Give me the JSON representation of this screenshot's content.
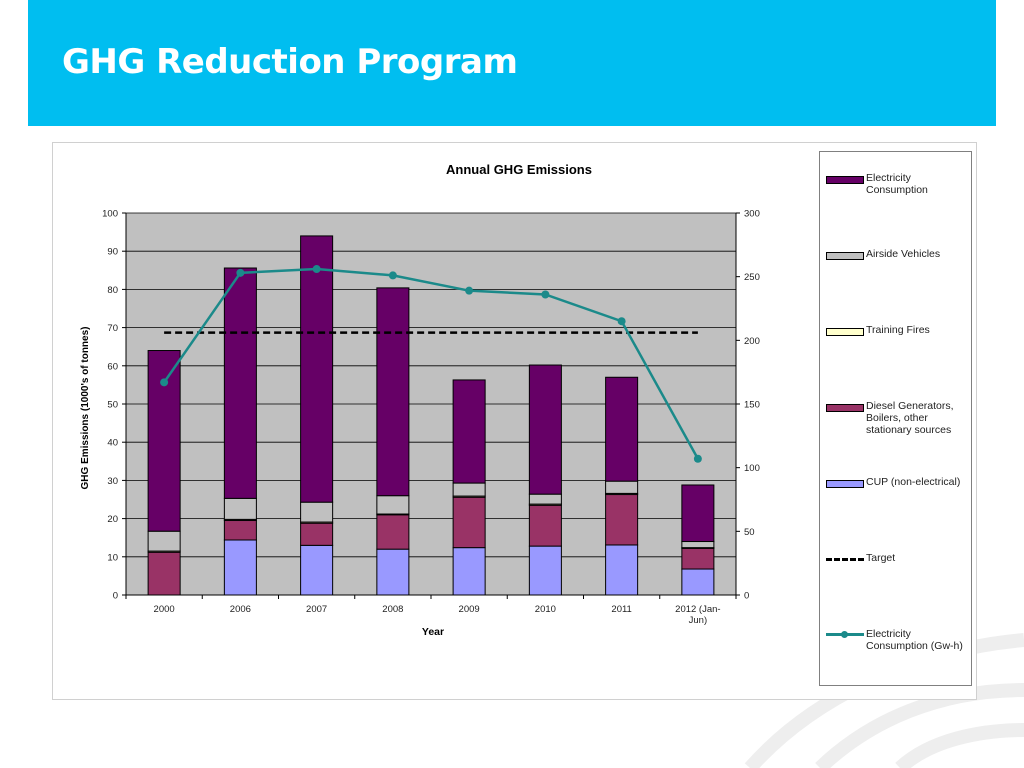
{
  "slide": {
    "title": "GHG Reduction Program",
    "banner_color": "#00bef0"
  },
  "chart_data": {
    "type": "bar",
    "stacked": true,
    "title": "Annual GHG Emissions",
    "xlabel": "Year",
    "ylabel": "GHG Emissions  (1000's of tonnes)",
    "ylim": [
      0,
      100
    ],
    "y_ticks": [
      0,
      10,
      20,
      30,
      40,
      50,
      60,
      70,
      80,
      90,
      100
    ],
    "y2lim": [
      0,
      300
    ],
    "y2_ticks": [
      0,
      50,
      100,
      150,
      200,
      250,
      300
    ],
    "grid": true,
    "legend_position": "right",
    "categories": [
      "2000",
      "2006",
      "2007",
      "2008",
      "2009",
      "2010",
      "2011",
      "2012 (Jan-Jun)"
    ],
    "category_label_lines": [
      [
        "2000"
      ],
      [
        "2006"
      ],
      [
        "2007"
      ],
      [
        "2008"
      ],
      [
        "2009"
      ],
      [
        "2010"
      ],
      [
        "2011"
      ],
      [
        "2012 (Jan-",
        "Jun)"
      ]
    ],
    "series": [
      {
        "name": "CUP (non-electrical)",
        "type": "bar",
        "axis": "left",
        "color": "#9999ff",
        "values": [
          0,
          14.4,
          13.0,
          12.0,
          12.4,
          12.8,
          13.1,
          6.8
        ]
      },
      {
        "name": "Diesel Generators, Boilers, other stationary sources",
        "type": "bar",
        "axis": "left",
        "color": "#993366",
        "values": [
          11.2,
          5.1,
          5.8,
          9.0,
          13.2,
          10.7,
          13.2,
          5.5
        ]
      },
      {
        "name": "Training Fires",
        "type": "bar",
        "axis": "left",
        "color": "#ffffcc",
        "values": [
          0.3,
          0.3,
          0.3,
          0.2,
          0.3,
          0.3,
          0.3,
          0.1
        ]
      },
      {
        "name": "Airside Vehicles",
        "type": "bar",
        "axis": "left",
        "color": "#c0c0c0",
        "values": [
          5.2,
          5.5,
          5.2,
          4.8,
          3.4,
          2.6,
          3.2,
          1.6
        ]
      },
      {
        "name": "Electricity Consumption",
        "type": "bar",
        "axis": "left",
        "color": "#660066",
        "values": [
          47.3,
          60.3,
          69.7,
          54.4,
          27.0,
          33.8,
          27.2,
          14.8
        ]
      },
      {
        "name": "Target",
        "type": "line",
        "style": "dashed",
        "axis": "left",
        "color": "#000000",
        "values": [
          68.7,
          68.7,
          68.7,
          68.7,
          68.7,
          68.7,
          68.7,
          68.7
        ]
      },
      {
        "name": "Electricity Consumption (Gw-h)",
        "type": "line",
        "axis": "right",
        "color": "#1b8a8a",
        "values": [
          167,
          253,
          256,
          251,
          239,
          236,
          215,
          107
        ]
      }
    ],
    "legend": [
      {
        "label": "Electricity Consumption",
        "kind": "swatch",
        "color": "#660066"
      },
      {
        "label": "Airside Vehicles",
        "kind": "swatch",
        "color": "#c0c0c0"
      },
      {
        "label": "Training Fires",
        "kind": "swatch",
        "color": "#ffffcc"
      },
      {
        "label": "Diesel Generators, Boilers, other stationary sources",
        "kind": "swatch",
        "color": "#993366"
      },
      {
        "label": "CUP (non-electrical)",
        "kind": "swatch",
        "color": "#9999ff"
      },
      {
        "label": "Target",
        "kind": "dash",
        "color": "#000000"
      },
      {
        "label": "Electricity Consumption (Gw-h)",
        "kind": "line",
        "color": "#1b8a8a"
      }
    ]
  }
}
